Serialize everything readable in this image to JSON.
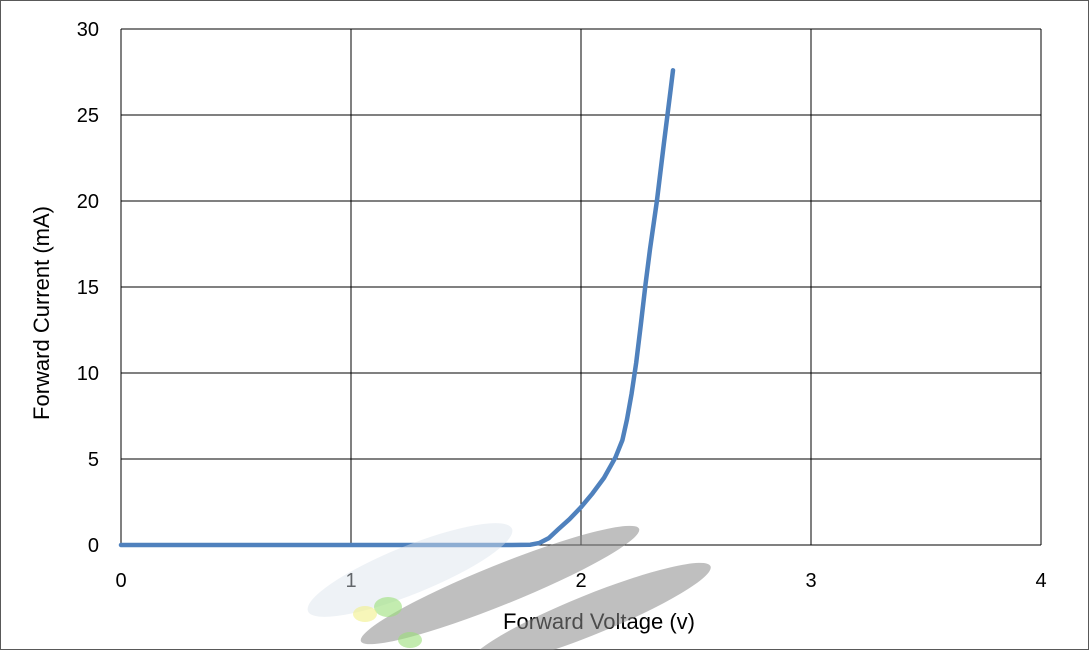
{
  "chart_data": {
    "type": "line",
    "title": "",
    "xlabel": "Forward Voltage (v)",
    "ylabel": "Forward Current (mA)",
    "xlim": [
      0,
      4
    ],
    "ylim": [
      0,
      30
    ],
    "xticks": [
      0,
      1,
      2,
      3,
      4
    ],
    "yticks": [
      0,
      5,
      10,
      15,
      20,
      25,
      30
    ],
    "xtick_labels": [
      "0",
      "1",
      "2",
      "3",
      "4"
    ],
    "ytick_labels": [
      "0",
      "5",
      "10",
      "15",
      "20",
      "25",
      "30"
    ],
    "grid": true,
    "legend": "none",
    "series": [
      {
        "color": "#4f81bd",
        "x": [
          0,
          0.5,
          1.0,
          1.5,
          1.7,
          1.78,
          1.82,
          1.86,
          1.9,
          1.95,
          2.0,
          2.05,
          2.1,
          2.15,
          2.18,
          2.2,
          2.22,
          2.24,
          2.26,
          2.28,
          2.3,
          2.33,
          2.36,
          2.39,
          2.4
        ],
        "y": [
          0,
          0,
          0,
          0,
          0,
          0.02,
          0.12,
          0.4,
          0.9,
          1.5,
          2.2,
          3.0,
          3.9,
          5.1,
          6.1,
          7.3,
          8.8,
          10.6,
          12.8,
          15.1,
          17.2,
          20.0,
          23.3,
          26.5,
          27.6
        ]
      }
    ]
  }
}
